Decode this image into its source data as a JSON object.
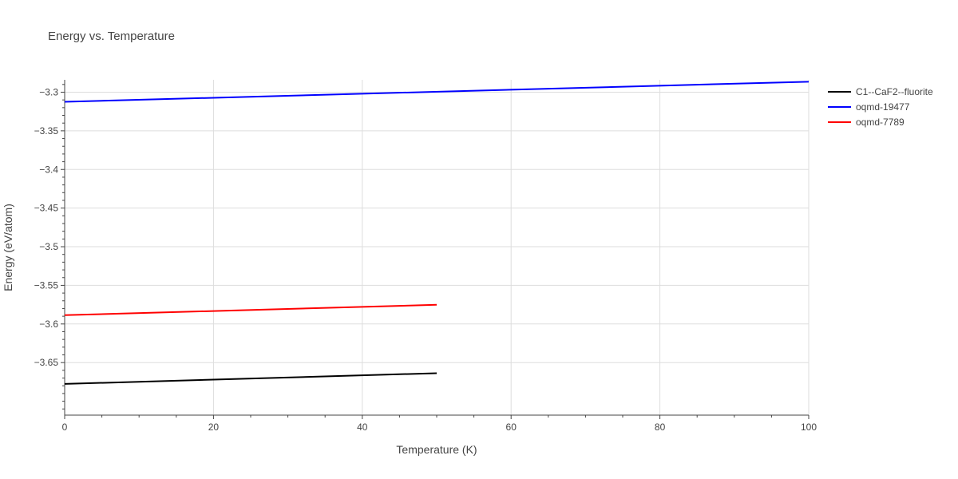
{
  "chart_data": {
    "type": "line",
    "title": "Energy vs. Temperature",
    "xlabel": "Temperature (K)",
    "ylabel": "Energy (eV/atom)",
    "xlim": [
      0,
      100
    ],
    "ylim": [
      -3.718,
      -3.284
    ],
    "xticks": [
      0,
      20,
      40,
      60,
      80,
      100
    ],
    "xtick_labels": [
      "0",
      "20",
      "40",
      "60",
      "80",
      "100"
    ],
    "yticks": [
      -3.3,
      -3.35,
      -3.4,
      -3.45,
      -3.5,
      -3.55,
      -3.6,
      -3.65
    ],
    "ytick_labels": [
      "−3.3",
      "−3.35",
      "−3.4",
      "−3.45",
      "−3.5",
      "−3.55",
      "−3.6",
      "−3.65"
    ],
    "grid": true,
    "legend_position": "top-right (outside plot)",
    "series": [
      {
        "name": "C1--CaF2--fluorite",
        "color": "#000000",
        "x": [
          0,
          50
        ],
        "y": [
          -3.6776,
          -3.6637
        ]
      },
      {
        "name": "oqmd-19477",
        "color": "#0000ff",
        "x": [
          0,
          100
        ],
        "y": [
          -3.3124,
          -3.2864
        ]
      },
      {
        "name": "oqmd-7789",
        "color": "#ff0000",
        "x": [
          0,
          50
        ],
        "y": [
          -3.5886,
          -3.5752
        ]
      }
    ]
  }
}
